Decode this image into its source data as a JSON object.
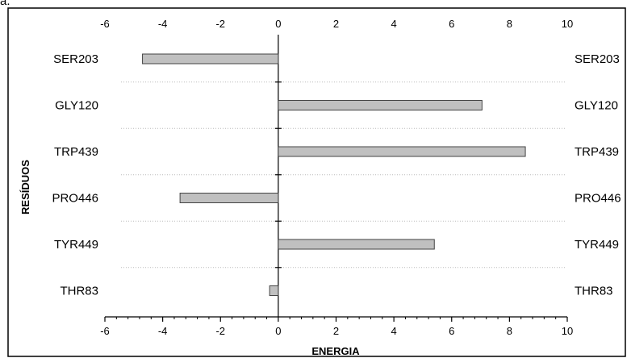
{
  "corner_label": "a.",
  "chart_data": {
    "type": "bar",
    "orientation": "horizontal",
    "categories": [
      "SER203",
      "GLY120",
      "TRP439",
      "PRO446",
      "TYR449",
      "THR83"
    ],
    "values": [
      -4.7,
      7.05,
      8.55,
      -3.4,
      5.4,
      -0.3
    ],
    "xlabel": "ENERGIA",
    "ylabel": "RESÍDUOS",
    "xlim": [
      -6,
      10
    ],
    "xticks": [
      -6,
      -4,
      -2,
      0,
      2,
      4,
      6,
      8,
      10
    ],
    "tick_labels": [
      "-6",
      "-4",
      "-2",
      "0",
      "2",
      "4",
      "6",
      "8",
      "10"
    ],
    "grid": "dotted horizontal separators",
    "bar_color": "#c0c0c0",
    "bar_edge_color": "#444444"
  }
}
